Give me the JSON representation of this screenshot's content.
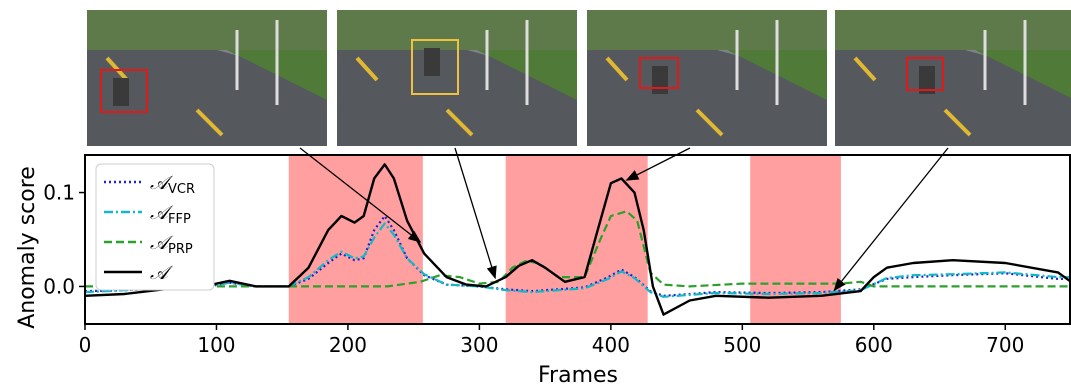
{
  "frames": [
    {
      "name": "frame-1",
      "box_color": "#e0191b",
      "target_frame": 255
    },
    {
      "name": "frame-2",
      "box_color": "#f0c040",
      "target_frame": 312
    },
    {
      "name": "frame-3",
      "box_color": "#e0191b",
      "target_frame": 412
    },
    {
      "name": "frame-4",
      "box_color": "#e0191b",
      "target_frame": 570
    }
  ],
  "chart_data": {
    "type": "line",
    "xlabel": "Frames",
    "ylabel": "Anomaly score",
    "xlim": [
      0,
      750
    ],
    "ylim": [
      -0.04,
      0.14
    ],
    "xticks": [
      "0",
      "100",
      "200",
      "300",
      "400",
      "500",
      "600",
      "700"
    ],
    "xtick_values": [
      0,
      100,
      200,
      300,
      400,
      500,
      600,
      700
    ],
    "yticks": [
      "0.0",
      "0.1"
    ],
    "ytick_values": [
      0.0,
      0.1
    ],
    "grid": false,
    "legend_position": "top-left",
    "anomaly_regions": [
      [
        155,
        257
      ],
      [
        320,
        428
      ],
      [
        506,
        575
      ]
    ],
    "region_color": "#ff9a9a",
    "series": [
      {
        "name": "VCR",
        "legend_symbol": "𝒜",
        "legend_sub": "VCR",
        "color": "#2020d0",
        "dash": "2,3",
        "x": [
          0,
          30,
          60,
          90,
          110,
          130,
          155,
          170,
          185,
          195,
          205,
          212,
          220,
          228,
          235,
          245,
          258,
          275,
          300,
          320,
          340,
          360,
          380,
          398,
          408,
          418,
          430,
          440,
          460,
          480,
          520,
          560,
          590,
          610,
          630,
          660,
          700,
          740,
          750
        ],
        "y": [
          -0.005,
          -0.004,
          -0.002,
          -0.001,
          0.004,
          0.0,
          0.0,
          0.008,
          0.025,
          0.035,
          0.028,
          0.03,
          0.06,
          0.075,
          0.06,
          0.03,
          0.012,
          0.002,
          0.0,
          -0.003,
          -0.005,
          -0.003,
          -0.001,
          0.01,
          0.018,
          0.01,
          -0.005,
          -0.01,
          -0.008,
          -0.006,
          -0.007,
          -0.006,
          -0.003,
          0.008,
          0.01,
          0.012,
          0.014,
          0.008,
          0.008
        ]
      },
      {
        "name": "FFP",
        "legend_symbol": "𝒜",
        "legend_sub": "FFP",
        "color": "#10b8c8",
        "dash": "9,3,2,3",
        "x": [
          0,
          30,
          60,
          90,
          110,
          130,
          155,
          170,
          185,
          195,
          205,
          212,
          220,
          228,
          235,
          245,
          258,
          275,
          300,
          320,
          340,
          360,
          380,
          398,
          408,
          418,
          430,
          440,
          460,
          480,
          520,
          560,
          590,
          610,
          630,
          660,
          700,
          740,
          750
        ],
        "y": [
          -0.006,
          -0.004,
          -0.002,
          -0.001,
          0.004,
          0.0,
          0.0,
          0.01,
          0.028,
          0.037,
          0.03,
          0.032,
          0.052,
          0.067,
          0.055,
          0.03,
          0.013,
          0.002,
          0.0,
          -0.004,
          -0.006,
          -0.004,
          -0.002,
          0.008,
          0.016,
          0.009,
          -0.006,
          -0.011,
          -0.009,
          -0.007,
          -0.008,
          -0.007,
          -0.004,
          0.009,
          0.012,
          0.013,
          0.015,
          0.01,
          0.01
        ]
      },
      {
        "name": "PRP",
        "legend_symbol": "𝒜",
        "legend_sub": "PRP",
        "color": "#2ca02c",
        "dash": "8,4",
        "x": [
          0,
          50,
          100,
          150,
          200,
          230,
          255,
          270,
          285,
          300,
          315,
          325,
          335,
          345,
          360,
          380,
          392,
          400,
          412,
          420,
          430,
          440,
          460,
          500,
          550,
          575,
          590,
          600,
          650,
          700,
          750
        ],
        "y": [
          0.0,
          0.0,
          0.0,
          0.0,
          0.0,
          0.0,
          0.005,
          0.012,
          0.01,
          0.003,
          0.005,
          0.02,
          0.027,
          0.025,
          0.01,
          0.01,
          0.05,
          0.075,
          0.08,
          0.07,
          0.015,
          0.002,
          0.0,
          0.003,
          0.003,
          0.003,
          0.005,
          0.0,
          0.0,
          0.0,
          0.0
        ]
      },
      {
        "name": "A",
        "legend_symbol": "𝒜",
        "legend_sub": "",
        "color": "#000000",
        "dash": "",
        "x": [
          0,
          30,
          60,
          90,
          110,
          130,
          155,
          170,
          185,
          195,
          205,
          212,
          220,
          228,
          235,
          245,
          258,
          275,
          290,
          305,
          320,
          330,
          340,
          350,
          365,
          380,
          390,
          400,
          408,
          418,
          425,
          432,
          440,
          460,
          480,
          520,
          560,
          590,
          600,
          610,
          630,
          660,
          700,
          740,
          750
        ],
        "y": [
          -0.01,
          -0.008,
          -0.003,
          0.0,
          0.006,
          0.0,
          0.0,
          0.02,
          0.06,
          0.075,
          0.068,
          0.075,
          0.115,
          0.13,
          0.115,
          0.07,
          0.035,
          0.01,
          0.002,
          0.0,
          0.01,
          0.022,
          0.028,
          0.02,
          0.005,
          0.01,
          0.06,
          0.11,
          0.115,
          0.1,
          0.06,
          0.0,
          -0.03,
          -0.015,
          -0.01,
          -0.012,
          -0.01,
          -0.005,
          0.01,
          0.02,
          0.025,
          0.028,
          0.025,
          0.015,
          0.005
        ]
      }
    ]
  }
}
